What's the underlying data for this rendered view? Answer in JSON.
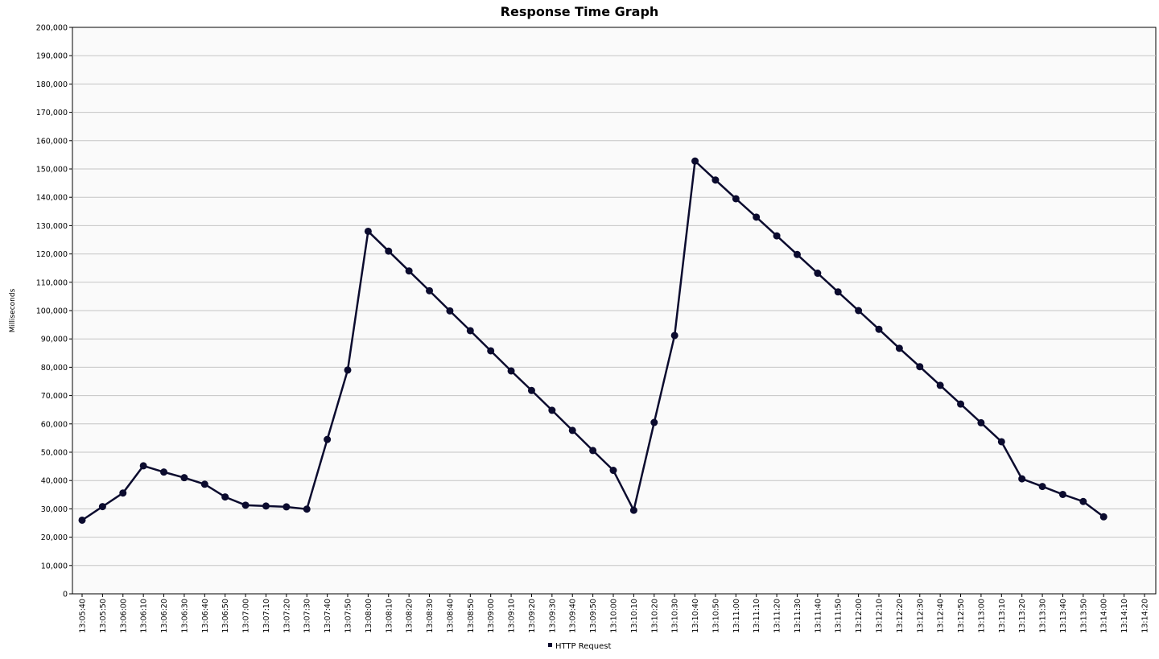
{
  "chart_data": {
    "type": "line",
    "title": "Response Time Graph",
    "xlabel": "",
    "ylabel": "Milliseconds",
    "ylim": [
      0,
      200000
    ],
    "y_ticks": [
      "0",
      "10,000",
      "20,000",
      "30,000",
      "40,000",
      "50,000",
      "60,000",
      "70,000",
      "80,000",
      "90,000",
      "100,000",
      "110,000",
      "120,000",
      "130,000",
      "140,000",
      "150,000",
      "160,000",
      "170,000",
      "180,000",
      "190,000",
      "200,000"
    ],
    "categories": [
      "13:05:40",
      "13:05:50",
      "13:06:00",
      "13:06:10",
      "13:06:20",
      "13:06:30",
      "13:06:40",
      "13:06:50",
      "13:07:00",
      "13:07:10",
      "13:07:20",
      "13:07:30",
      "13:07:40",
      "13:07:50",
      "13:08:00",
      "13:08:10",
      "13:08:20",
      "13:08:30",
      "13:08:40",
      "13:08:50",
      "13:09:00",
      "13:09:10",
      "13:09:20",
      "13:09:30",
      "13:09:40",
      "13:09:50",
      "13:10:00",
      "13:10:10",
      "13:10:20",
      "13:10:30",
      "13:10:40",
      "13:10:50",
      "13:11:00",
      "13:11:10",
      "13:11:20",
      "13:11:30",
      "13:11:40",
      "13:11:50",
      "13:12:00",
      "13:12:10",
      "13:12:20",
      "13:12:30",
      "13:12:40",
      "13:12:50",
      "13:13:00",
      "13:13:10",
      "13:13:20",
      "13:13:30",
      "13:13:40",
      "13:13:50",
      "13:14:00",
      "13:14:10",
      "13:14:20"
    ],
    "series": [
      {
        "name": "HTTP Request",
        "color": "#0b0b2e",
        "values": [
          26000,
          30800,
          35600,
          45200,
          43000,
          41000,
          38700,
          34200,
          31300,
          31000,
          30700,
          29900,
          54500,
          79000,
          128000,
          121000,
          114000,
          107000,
          99900,
          92900,
          85800,
          78700,
          71800,
          64800,
          57700,
          50600,
          43600,
          29500,
          60500,
          91200,
          152800,
          146100,
          139500,
          133000,
          126400,
          119800,
          113200,
          106600,
          100000,
          93400,
          86700,
          80200,
          73600,
          67000,
          60400,
          53700,
          40600,
          37900,
          35100,
          32600,
          27200,
          null,
          null
        ]
      }
    ],
    "grid": true,
    "legend_position": "bottom-center"
  }
}
